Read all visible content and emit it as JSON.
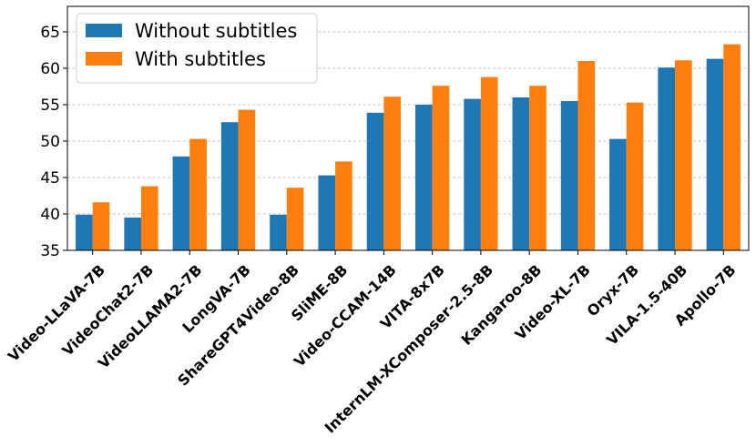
{
  "chart_data": {
    "type": "bar",
    "title": "",
    "xlabel": "",
    "ylabel": "",
    "ylim": [
      35,
      68.5
    ],
    "yticks": [
      35,
      40,
      45,
      50,
      55,
      60,
      65
    ],
    "grid": true,
    "legend_position": "top-left",
    "categories": [
      "Video-LLaVA-7B",
      "VideoChat2-7B",
      "VideoLLAMA2-7B",
      "LongVA-7B",
      "ShareGPT4Video-8B",
      "SliME-8B",
      "Video-CCAM-14B",
      "VITA-8x7B",
      "InternLM-XComposer-2.5-8B",
      "Kangaroo-8B",
      "Video-XL-7B",
      "Oryx-7B",
      "VILA-1.5-40B",
      "Apollo-7B"
    ],
    "series": [
      {
        "name": "Without subtitles",
        "color": "#1f77b4",
        "values": [
          39.9,
          39.5,
          47.9,
          52.6,
          39.9,
          45.3,
          53.9,
          55.0,
          55.8,
          56.0,
          55.5,
          50.3,
          60.1,
          61.3
        ]
      },
      {
        "name": "With subtitles",
        "color": "#ff7f0e",
        "values": [
          41.6,
          43.8,
          50.3,
          54.3,
          43.6,
          47.2,
          56.1,
          57.6,
          58.8,
          57.6,
          61.0,
          55.3,
          61.1,
          63.3
        ]
      }
    ]
  }
}
